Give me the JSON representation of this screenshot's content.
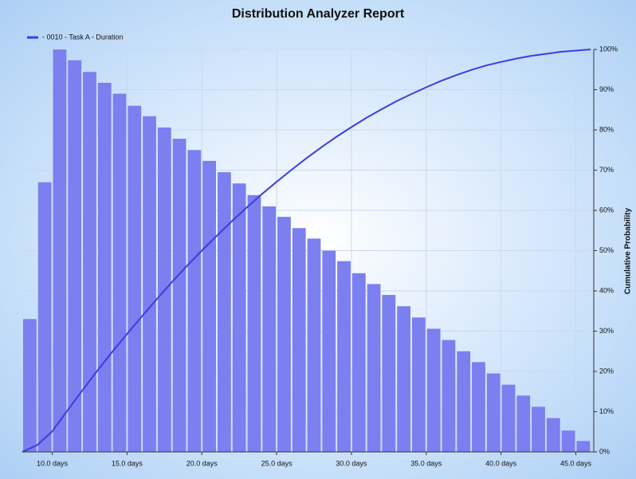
{
  "chart_data": {
    "type": "histogram",
    "title": "Distribution Analyzer Report",
    "bins": [
      8,
      9,
      10,
      11,
      12,
      13,
      14,
      15,
      16,
      17,
      18,
      19,
      20,
      21,
      22,
      23,
      24,
      25,
      26,
      27,
      28,
      29,
      30,
      31,
      32,
      33,
      34,
      35,
      36,
      37,
      38,
      39,
      40,
      41,
      42,
      43,
      44,
      45,
      46
    ],
    "values": [
      33,
      67,
      100,
      97.3,
      94.4,
      91.7,
      89,
      86,
      83.4,
      80.6,
      77.8,
      75,
      72.3,
      69.5,
      66.7,
      63.8,
      61,
      58.4,
      55.6,
      53,
      50,
      47.4,
      44.4,
      41.7,
      39,
      36.2,
      33.4,
      30.6,
      27.8,
      25,
      22.3,
      19.5,
      16.7,
      14,
      11.2,
      8.4,
      5.3,
      2.7
    ],
    "color": "#7b7ff0",
    "series": [
      {
        "name": "- 0010 - Task A - Duration",
        "type": "line",
        "axis": "y2",
        "color": "#3a3ee0",
        "x": [
          8,
          9,
          10,
          11,
          12,
          13,
          14,
          15,
          16,
          17,
          18,
          19,
          20,
          21,
          22,
          23,
          24,
          25,
          26,
          27,
          28,
          29,
          30,
          31,
          32,
          33,
          34,
          35,
          36,
          37,
          38,
          39,
          40,
          41,
          42,
          43,
          44,
          45,
          46
        ],
        "values": [
          0,
          1.7,
          5.1,
          10.2,
          15.2,
          20.1,
          24.8,
          29.3,
          33.7,
          38,
          42.2,
          46.2,
          50,
          53.7,
          57.3,
          60.7,
          64,
          67.1,
          70.1,
          73,
          75.7,
          78.3,
          80.7,
          83,
          85.1,
          87.1,
          88.9,
          90.6,
          92.2,
          93.6,
          94.9,
          96,
          96.9,
          97.7,
          98.4,
          98.9,
          99.4,
          99.7,
          100
        ]
      }
    ],
    "xlim": [
      8,
      46.2
    ],
    "xticks": [
      {
        "value": 10,
        "label": "10.0 days"
      },
      {
        "value": 15,
        "label": "15.0 days"
      },
      {
        "value": 20,
        "label": "20.0 days"
      },
      {
        "value": 25,
        "label": "25.0 days"
      },
      {
        "value": 30,
        "label": "30.0 days"
      },
      {
        "value": 35,
        "label": "35.0 days"
      },
      {
        "value": 40,
        "label": "40.0 days"
      },
      {
        "value": 45,
        "label": "45.0 days"
      }
    ],
    "y2lim": [
      0,
      100
    ],
    "y2ticks": [
      {
        "value": 0,
        "label": "0%"
      },
      {
        "value": 10,
        "label": "10%"
      },
      {
        "value": 20,
        "label": "20%"
      },
      {
        "value": 30,
        "label": "30%"
      },
      {
        "value": 40,
        "label": "40%"
      },
      {
        "value": 50,
        "label": "50%"
      },
      {
        "value": 60,
        "label": "60%"
      },
      {
        "value": 70,
        "label": "70%"
      },
      {
        "value": 80,
        "label": "80%"
      },
      {
        "value": 90,
        "label": "90%"
      },
      {
        "value": 100,
        "label": "100%"
      }
    ],
    "y2label": "Cumulative Probability",
    "grid": true,
    "legend": "top-left"
  }
}
